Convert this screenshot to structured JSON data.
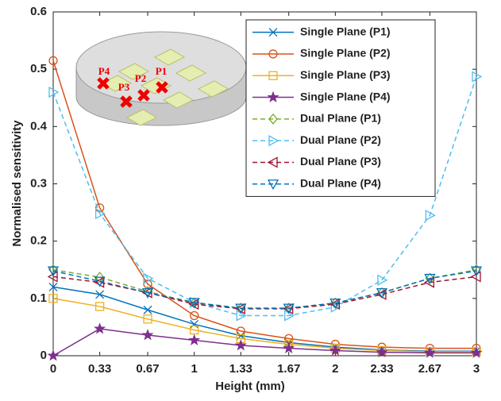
{
  "chart_data": {
    "type": "line",
    "xlabel": "Height (mm)",
    "ylabel": "Normalised sensitivity",
    "x": [
      0,
      0.33,
      0.67,
      1,
      1.33,
      1.67,
      2,
      2.33,
      2.67,
      3
    ],
    "xlim": [
      0,
      3
    ],
    "xticks": [
      0,
      0.33,
      0.67,
      1,
      1.33,
      1.67,
      2,
      2.33,
      2.67,
      3
    ],
    "ylim": [
      0,
      0.6
    ],
    "yticks": [
      0,
      0.1,
      0.2,
      0.3,
      0.4,
      0.5,
      0.6
    ],
    "grid": false,
    "legend": "upper right",
    "annotations": [
      "P4",
      "P3",
      "P2",
      "P1"
    ],
    "series": [
      {
        "name": "Single Plane (P1)",
        "color": "#0072bd",
        "marker": "x",
        "linestyle": "solid",
        "values": [
          0.12,
          0.107,
          0.08,
          0.055,
          0.035,
          0.023,
          0.015,
          0.01,
          0.008,
          0.008
        ]
      },
      {
        "name": "Single Plane (P2)",
        "color": "#d95319",
        "marker": "o",
        "linestyle": "solid",
        "values": [
          0.515,
          0.258,
          0.125,
          0.07,
          0.043,
          0.03,
          0.02,
          0.015,
          0.013,
          0.013
        ]
      },
      {
        "name": "Single Plane (P3)",
        "color": "#edb120",
        "marker": "s",
        "linestyle": "solid",
        "values": [
          0.1,
          0.086,
          0.064,
          0.045,
          0.03,
          0.02,
          0.013,
          0.009,
          0.007,
          0.007
        ]
      },
      {
        "name": "Single Plane (P4)",
        "color": "#7e2f8e",
        "marker": "star",
        "linestyle": "solid",
        "values": [
          0.0,
          0.047,
          0.036,
          0.027,
          0.018,
          0.013,
          0.009,
          0.006,
          0.005,
          0.005
        ]
      },
      {
        "name": "Dual Plane (P1)",
        "color": "#77ac30",
        "marker": "d",
        "linestyle": "dashed",
        "values": [
          0.15,
          0.137,
          0.112,
          0.092,
          0.083,
          0.083,
          0.092,
          0.11,
          0.135,
          0.15
        ]
      },
      {
        "name": "Dual Plane (P2)",
        "color": "#4dbeee",
        "marker": ">",
        "linestyle": "dashed",
        "values": [
          0.46,
          0.248,
          0.135,
          0.093,
          0.07,
          0.07,
          0.085,
          0.132,
          0.245,
          0.487
        ]
      },
      {
        "name": "Dual Plane (P3)",
        "color": "#a2142f",
        "marker": "<",
        "linestyle": "dashed",
        "values": [
          0.138,
          0.128,
          0.11,
          0.09,
          0.082,
          0.082,
          0.09,
          0.107,
          0.128,
          0.138
        ]
      },
      {
        "name": "Dual Plane (P4)",
        "color": "#0072bd",
        "marker": "v",
        "linestyle": "dashed",
        "values": [
          0.148,
          0.13,
          0.11,
          0.093,
          0.083,
          0.083,
          0.092,
          0.11,
          0.135,
          0.148
        ]
      }
    ]
  }
}
